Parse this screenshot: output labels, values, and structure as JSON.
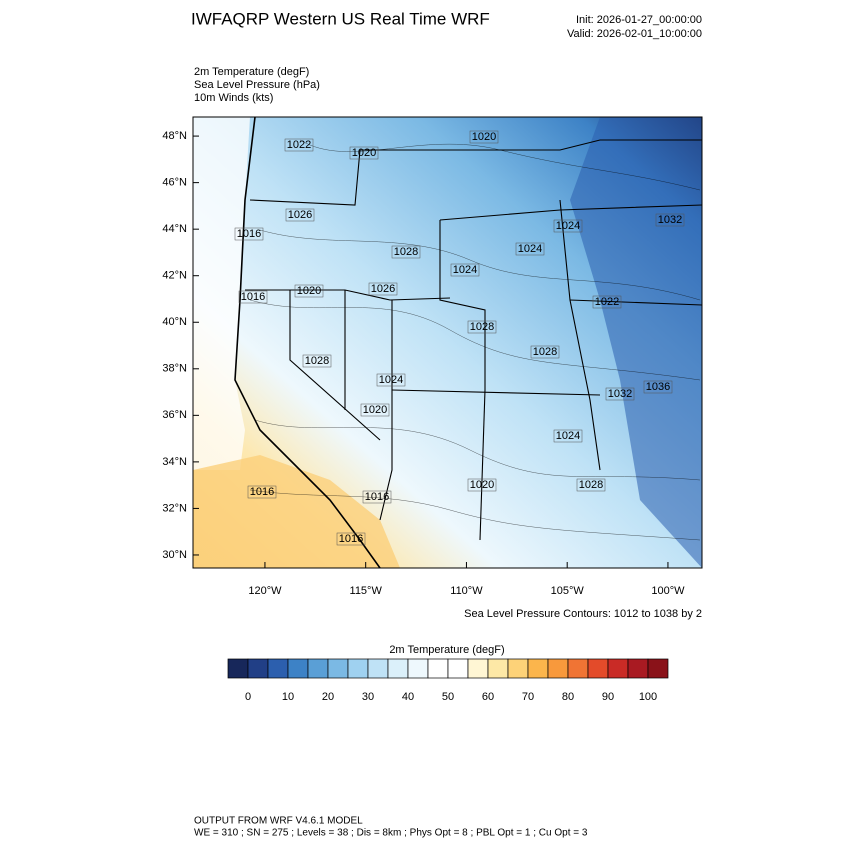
{
  "header": {
    "title": "IWFAQRP Western US Real Time WRF",
    "init": "Init: 2026-01-27_00:00:00",
    "valid": "Valid: 2026-02-01_10:00:00"
  },
  "fields": [
    "2m Temperature   (degF)",
    "Sea Level Pressure   (hPa)",
    "10m Winds   (kts)"
  ],
  "map": {
    "xlim": [
      -123.57,
      -98.31
    ],
    "ylim": [
      29.44,
      48.82
    ],
    "xticks": [
      {
        "value": -120,
        "label": "120°W"
      },
      {
        "value": -115,
        "label": "115°W"
      },
      {
        "value": -110,
        "label": "110°W"
      },
      {
        "value": -105,
        "label": "105°W"
      },
      {
        "value": -100,
        "label": "100°W"
      }
    ],
    "yticks": [
      {
        "value": 30,
        "label": "30°N"
      },
      {
        "value": 32,
        "label": "32°N"
      },
      {
        "value": 34,
        "label": "34°N"
      },
      {
        "value": 36,
        "label": "36°N"
      },
      {
        "value": 38,
        "label": "38°N"
      },
      {
        "value": 40,
        "label": "40°N"
      },
      {
        "value": 42,
        "label": "42°N"
      },
      {
        "value": 44,
        "label": "44°N"
      },
      {
        "value": 46,
        "label": "46°N"
      },
      {
        "value": 48,
        "label": "48°N"
      }
    ],
    "contour_labels": [
      "1020",
      "1022",
      "1020",
      "1026",
      "1016",
      "1024",
      "1032",
      "1028",
      "1024",
      "1024",
      "1016",
      "1020",
      "1026",
      "1022",
      "1028",
      "1028",
      "1028",
      "1024",
      "1032",
      "1036",
      "1020",
      "1024",
      "1016",
      "1020",
      "1028",
      "1016",
      "1016"
    ],
    "contour_note": "Sea Level Pressure Contours: 1012 to 1038 by 2"
  },
  "colorbar": {
    "title": "2m Temperature  (degF)",
    "lim": [
      -5,
      105
    ],
    "ticks": [
      0,
      10,
      20,
      30,
      40,
      50,
      60,
      70,
      80,
      90,
      100
    ],
    "colors": [
      "#17275a",
      "#213f86",
      "#2c5fae",
      "#3d82c6",
      "#5a9fd6",
      "#7bb9e4",
      "#9fd1f0",
      "#bfe2f6",
      "#dbf0fa",
      "#eef8fd",
      "#ffffff",
      "#ffffff",
      "#fff6d4",
      "#fde8a6",
      "#fdd278",
      "#fbb54c",
      "#f8993c",
      "#f07434",
      "#e34b2a",
      "#c92b26",
      "#a91a22",
      "#8a1219"
    ]
  },
  "footer": {
    "line1": "OUTPUT FROM WRF V4.6.1 MODEL",
    "line2": "WE = 310 ; SN = 275 ; Levels = 38 ; Dis = 8km ; Phys Opt = 8 ; PBL Opt = 1 ; Cu Opt = 3"
  }
}
